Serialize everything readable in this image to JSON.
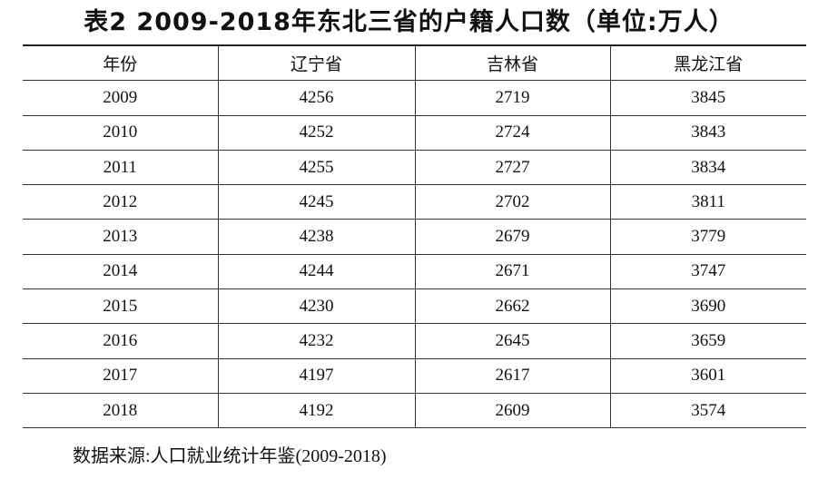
{
  "header": {
    "title": "表2 2009-2018年东北三省的户籍人口数（单位:万人）"
  },
  "table": {
    "headers": [
      "年份",
      "辽宁省",
      "吉林省",
      "黑龙江省"
    ],
    "rows": [
      [
        2009,
        4256,
        2719,
        3845
      ],
      [
        2010,
        4252,
        2724,
        3843
      ],
      [
        2011,
        4255,
        2727,
        3834
      ],
      [
        2012,
        4245,
        2702,
        3811
      ],
      [
        2013,
        4238,
        2679,
        3779
      ],
      [
        2014,
        4244,
        2671,
        3747
      ],
      [
        2015,
        4230,
        2662,
        3690
      ],
      [
        2016,
        4232,
        2645,
        3659
      ],
      [
        2017,
        4197,
        2617,
        3601
      ],
      [
        2018,
        4192,
        2609,
        3574
      ]
    ]
  },
  "footer": {
    "source": "数据来源:人口就业统计年鉴(2009-2018)"
  }
}
